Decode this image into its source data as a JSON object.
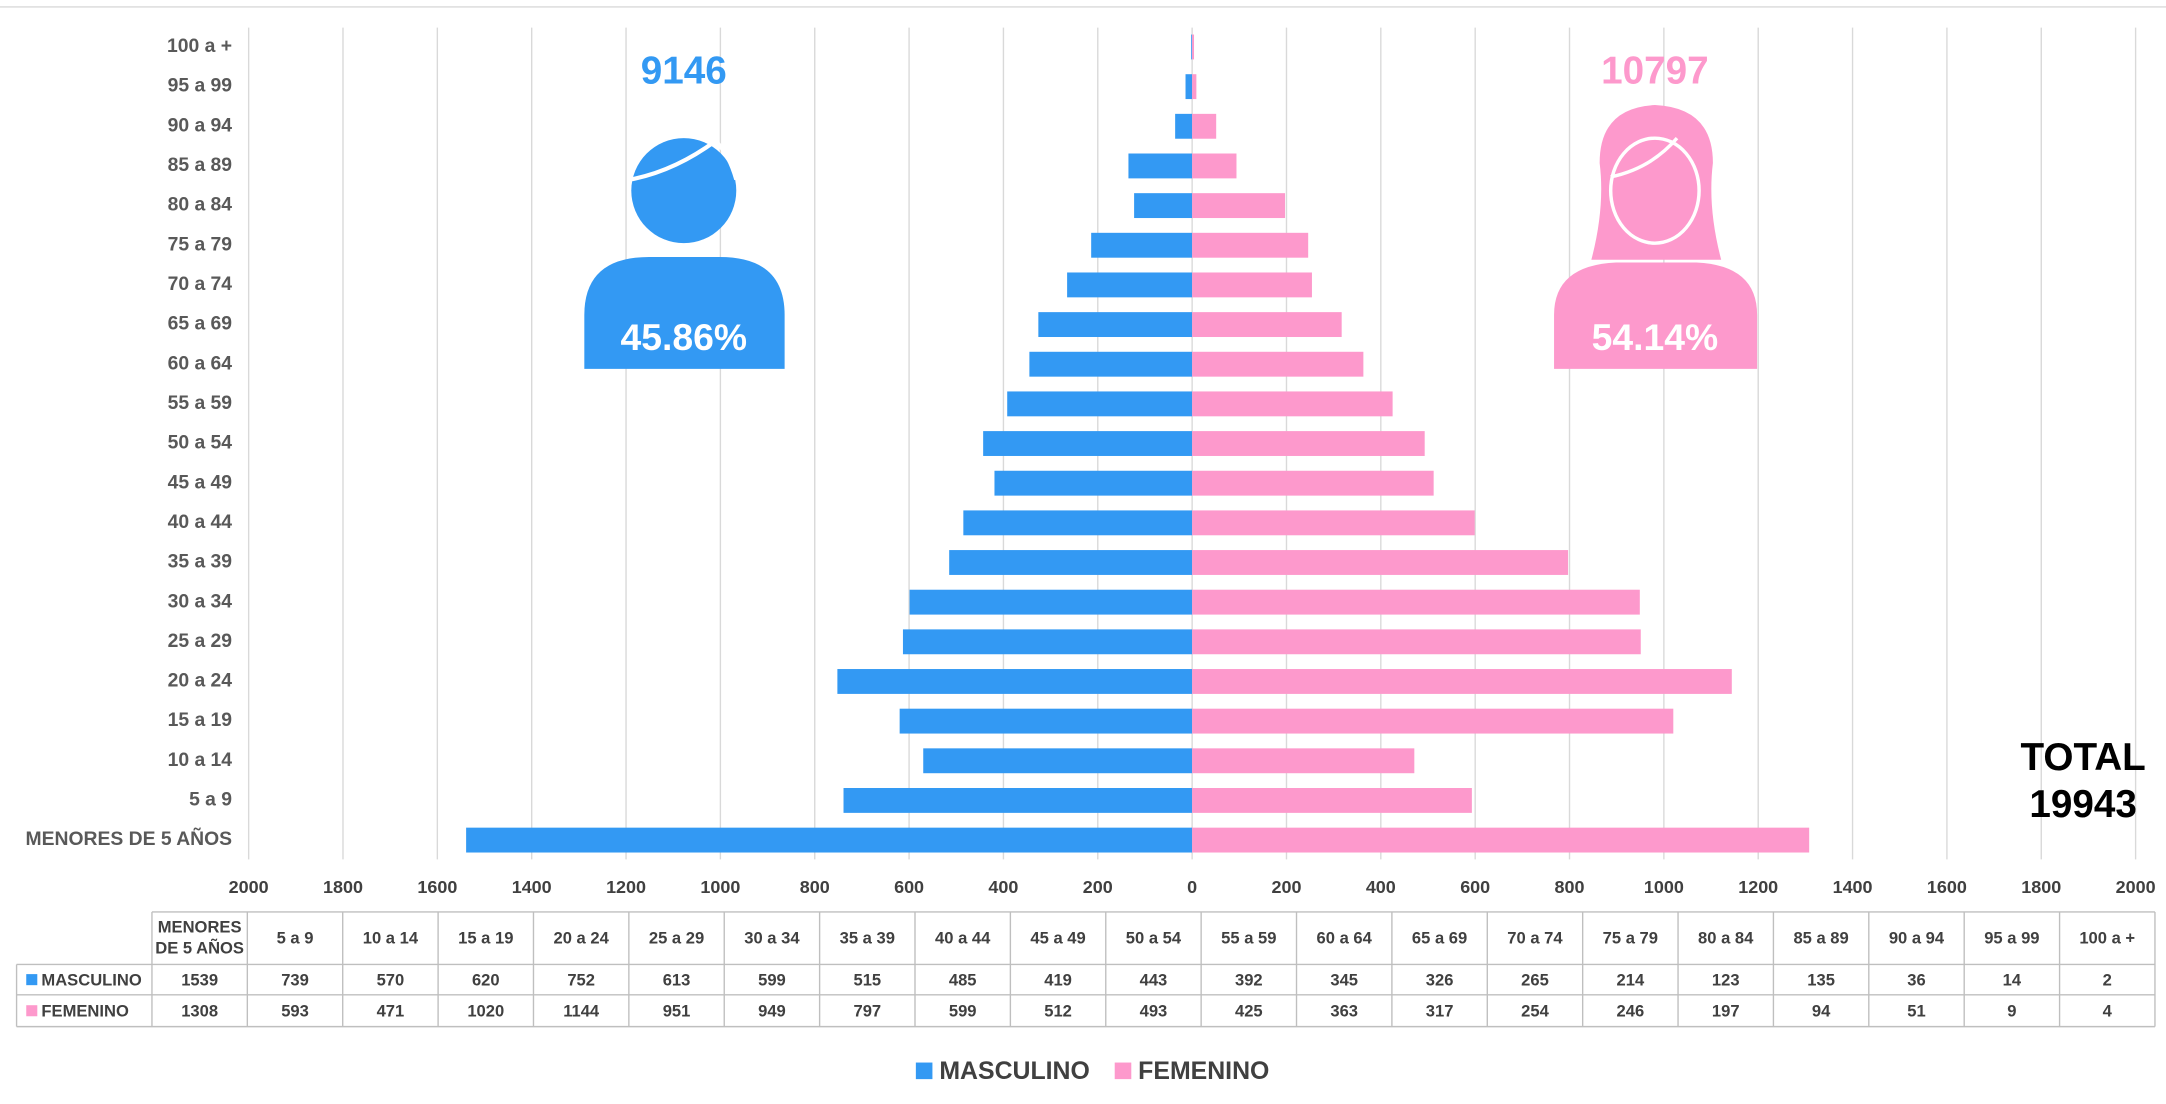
{
  "chart_data": {
    "type": "pyramid",
    "categories": [
      "MENORES DE 5 AÑOS",
      "5 a 9",
      "10 a 14",
      "15 a 19",
      "20 a 24",
      "25 a 29",
      "30 a 34",
      "35 a 39",
      "40 a 44",
      "45 a 49",
      "50 a 54",
      "55 a 59",
      "60 a 64",
      "65 a 69",
      "70 a 74",
      "75 a 79",
      "80 a 84",
      "85 a 89",
      "90 a 94",
      "95 a 99",
      "100 a +"
    ],
    "series": [
      {
        "name": "MASCULINO",
        "color": "#3399f3",
        "side": "left",
        "values": [
          1539,
          739,
          570,
          620,
          752,
          613,
          599,
          515,
          485,
          419,
          443,
          392,
          345,
          326,
          265,
          214,
          123,
          135,
          36,
          14,
          2
        ]
      },
      {
        "name": "FEMENINO",
        "color": "#fd99cc",
        "side": "right",
        "values": [
          1308,
          593,
          471,
          1020,
          1144,
          951,
          949,
          797,
          599,
          512,
          493,
          425,
          363,
          317,
          254,
          246,
          197,
          94,
          51,
          9,
          4
        ]
      }
    ],
    "xlim": [
      -2000,
      2000
    ],
    "xticks": [
      {
        "value": -2000,
        "label": "2000"
      },
      {
        "value": -1800,
        "label": "1800"
      },
      {
        "value": -1600,
        "label": "1600"
      },
      {
        "value": -1400,
        "label": "1400"
      },
      {
        "value": -1200,
        "label": "1200"
      },
      {
        "value": -1000,
        "label": "1000"
      },
      {
        "value": -800,
        "label": "800"
      },
      {
        "value": -600,
        "label": "600"
      },
      {
        "value": -400,
        "label": "400"
      },
      {
        "value": -200,
        "label": "200"
      },
      0,
      200,
      400,
      600,
      800,
      1000,
      1200,
      1400,
      1600,
      1800,
      2000
    ],
    "grid": true,
    "legend": "bottom",
    "annotations": [
      "9146",
      "45.86%",
      "10797",
      "54.14%",
      "TOTAL",
      "19943"
    ]
  }
}
